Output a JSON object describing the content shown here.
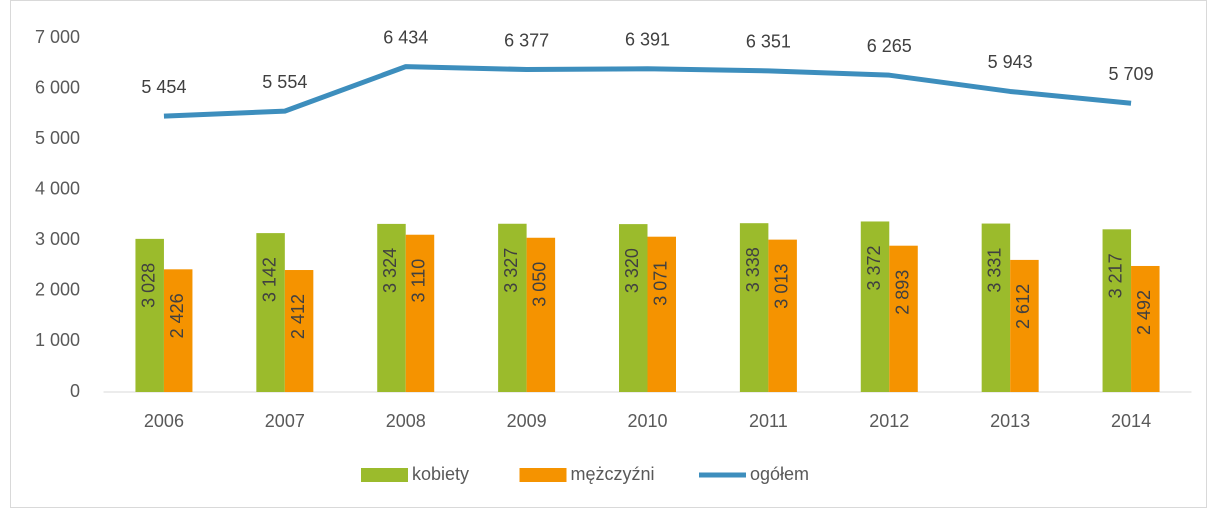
{
  "chart_data": {
    "type": "bar",
    "categories": [
      "2006",
      "2007",
      "2008",
      "2009",
      "2010",
      "2011",
      "2012",
      "2013",
      "2014"
    ],
    "series": [
      {
        "name": "kobiety",
        "type": "bar",
        "color": "#9bbb2c",
        "values": [
          3028,
          3142,
          3324,
          3327,
          3320,
          3338,
          3372,
          3331,
          3217
        ],
        "value_labels": [
          "3 028",
          "3 142",
          "3 324",
          "3 327",
          "3 320",
          "3 338",
          "3 372",
          "3 331",
          "3 217"
        ]
      },
      {
        "name": "mężczyźni",
        "type": "bar",
        "color": "#f59300",
        "values": [
          2426,
          2412,
          3110,
          3050,
          3071,
          3013,
          2893,
          2612,
          2492
        ],
        "value_labels": [
          "2 426",
          "2 412",
          "3 110",
          "3 050",
          "3 071",
          "3 013",
          "2 893",
          "2 612",
          "2 492"
        ]
      },
      {
        "name": "ogółem",
        "type": "line",
        "color": "#3d8ebd",
        "values": [
          5454,
          5554,
          6434,
          6377,
          6391,
          6351,
          6265,
          5943,
          5709
        ],
        "value_labels": [
          "5 454",
          "5 554",
          "6 434",
          "6 377",
          "6 391",
          "6 351",
          "6 265",
          "5 943",
          "5 709"
        ]
      }
    ],
    "ylim": [
      0,
      7000
    ],
    "yticks": [
      0,
      {
        "value": 1000,
        "label": "1 000"
      },
      {
        "value": 2000,
        "label": "2 000"
      },
      {
        "value": 3000,
        "label": "3 000"
      },
      {
        "value": 4000,
        "label": "4 000"
      },
      {
        "value": 5000,
        "label": "5 000"
      },
      {
        "value": 6000,
        "label": "6 000"
      },
      {
        "value": 7000,
        "label": "7 000"
      }
    ],
    "grid": false,
    "legend": "bottom"
  }
}
